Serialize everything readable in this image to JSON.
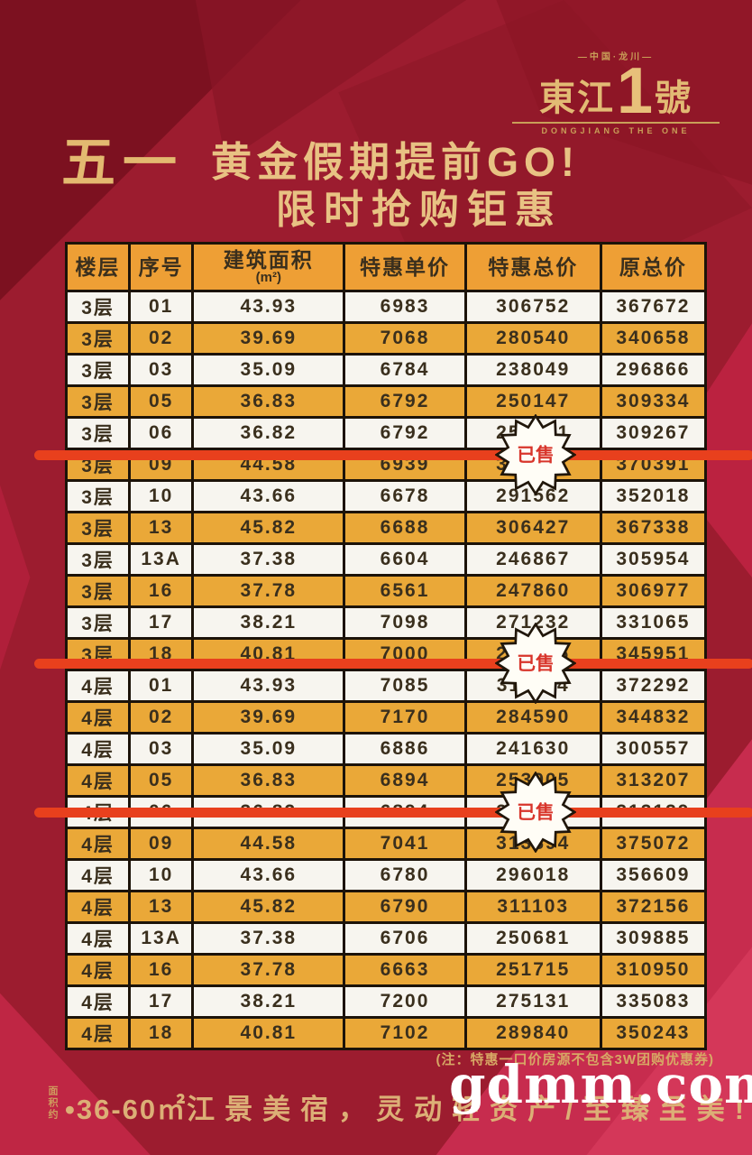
{
  "poster": {
    "logo": {
      "tagline": "—中国·龙川—",
      "name_prefix": "東江",
      "name_number": "1",
      "name_suffix": "號",
      "subtitle": "DONGJIANG THE ONE"
    },
    "title": {
      "highlight": "五一",
      "line1_rest": "黄金假期提前GO!",
      "line2": "限时抢购钜惠"
    },
    "note": "(注：特惠一口价房源不包含3W团购优惠券)",
    "footer": {
      "vertical_label": "面积约",
      "measure": "•36-60㎡",
      "slogan": "江景美宿，灵动轻资产/至臻至美!"
    },
    "watermark": "gdmm.com"
  },
  "table": {
    "headers": [
      "楼层",
      "序号",
      "建筑面积",
      "特惠单价",
      "特惠总价",
      "原总价"
    ],
    "area_unit": "(m²)",
    "sold_badge": "已售",
    "rows": [
      {
        "floor": "3层",
        "unit": "01",
        "area": "43.93",
        "price": "6983",
        "total": "306752",
        "original": "367672",
        "sold": false
      },
      {
        "floor": "3层",
        "unit": "02",
        "area": "39.69",
        "price": "7068",
        "total": "280540",
        "original": "340658",
        "sold": false
      },
      {
        "floor": "3层",
        "unit": "03",
        "area": "35.09",
        "price": "6784",
        "total": "238049",
        "original": "296866",
        "sold": false
      },
      {
        "floor": "3层",
        "unit": "05",
        "area": "36.83",
        "price": "6792",
        "total": "250147",
        "original": "309334",
        "sold": false
      },
      {
        "floor": "3层",
        "unit": "06",
        "area": "36.82",
        "price": "6792",
        "total": "250081",
        "original": "309267",
        "sold": false
      },
      {
        "floor": "3层",
        "unit": "09",
        "area": "44.58",
        "price": "6939",
        "total": "309341",
        "original": "370391",
        "sold": true
      },
      {
        "floor": "3层",
        "unit": "10",
        "area": "43.66",
        "price": "6678",
        "total": "291562",
        "original": "352018",
        "sold": false
      },
      {
        "floor": "3层",
        "unit": "13",
        "area": "45.82",
        "price": "6688",
        "total": "306427",
        "original": "367338",
        "sold": false
      },
      {
        "floor": "3层",
        "unit": "13A",
        "area": "37.38",
        "price": "6604",
        "total": "246867",
        "original": "305954",
        "sold": false
      },
      {
        "floor": "3层",
        "unit": "16",
        "area": "37.78",
        "price": "6561",
        "total": "247860",
        "original": "306977",
        "sold": false
      },
      {
        "floor": "3层",
        "unit": "17",
        "area": "38.21",
        "price": "7098",
        "total": "271232",
        "original": "331065",
        "sold": false
      },
      {
        "floor": "3层",
        "unit": "18",
        "area": "40.81",
        "price": "7000",
        "total": "285676",
        "original": "345951",
        "sold": false
      },
      {
        "floor": "4层",
        "unit": "01",
        "area": "43.93",
        "price": "7085",
        "total": "311244",
        "original": "372292",
        "sold": true
      },
      {
        "floor": "4层",
        "unit": "02",
        "area": "39.69",
        "price": "7170",
        "total": "284590",
        "original": "344832",
        "sold": false
      },
      {
        "floor": "4层",
        "unit": "03",
        "area": "35.09",
        "price": "6886",
        "total": "241630",
        "original": "300557",
        "sold": false
      },
      {
        "floor": "4层",
        "unit": "05",
        "area": "36.83",
        "price": "6894",
        "total": "253905",
        "original": "313207",
        "sold": false
      },
      {
        "floor": "4层",
        "unit": "06",
        "area": "36.82",
        "price": "6894",
        "total": "253839",
        "original": "313139",
        "sold": false
      },
      {
        "floor": "4层",
        "unit": "09",
        "area": "44.58",
        "price": "7041",
        "total": "313894",
        "original": "375072",
        "sold": true
      },
      {
        "floor": "4层",
        "unit": "10",
        "area": "43.66",
        "price": "6780",
        "total": "296018",
        "original": "356609",
        "sold": false
      },
      {
        "floor": "4层",
        "unit": "13",
        "area": "45.82",
        "price": "6790",
        "total": "311103",
        "original": "372156",
        "sold": false
      },
      {
        "floor": "4层",
        "unit": "13A",
        "area": "37.38",
        "price": "6706",
        "total": "250681",
        "original": "309885",
        "sold": false
      },
      {
        "floor": "4层",
        "unit": "16",
        "area": "37.78",
        "price": "6663",
        "total": "251715",
        "original": "310950",
        "sold": false
      },
      {
        "floor": "4层",
        "unit": "17",
        "area": "38.21",
        "price": "7200",
        "total": "275131",
        "original": "335083",
        "sold": false
      },
      {
        "floor": "4层",
        "unit": "18",
        "area": "40.81",
        "price": "7102",
        "total": "289840",
        "original": "350243",
        "sold": false
      }
    ]
  },
  "colors": {
    "background_red": "#9c1c2f",
    "bright_red": "#c72c4e",
    "header_orange": "#ee9f35",
    "row_orange": "#eaa838",
    "accent_gold": "#e8c283",
    "strike_red": "#e8401d",
    "badge_text_red": "#d8352b"
  }
}
